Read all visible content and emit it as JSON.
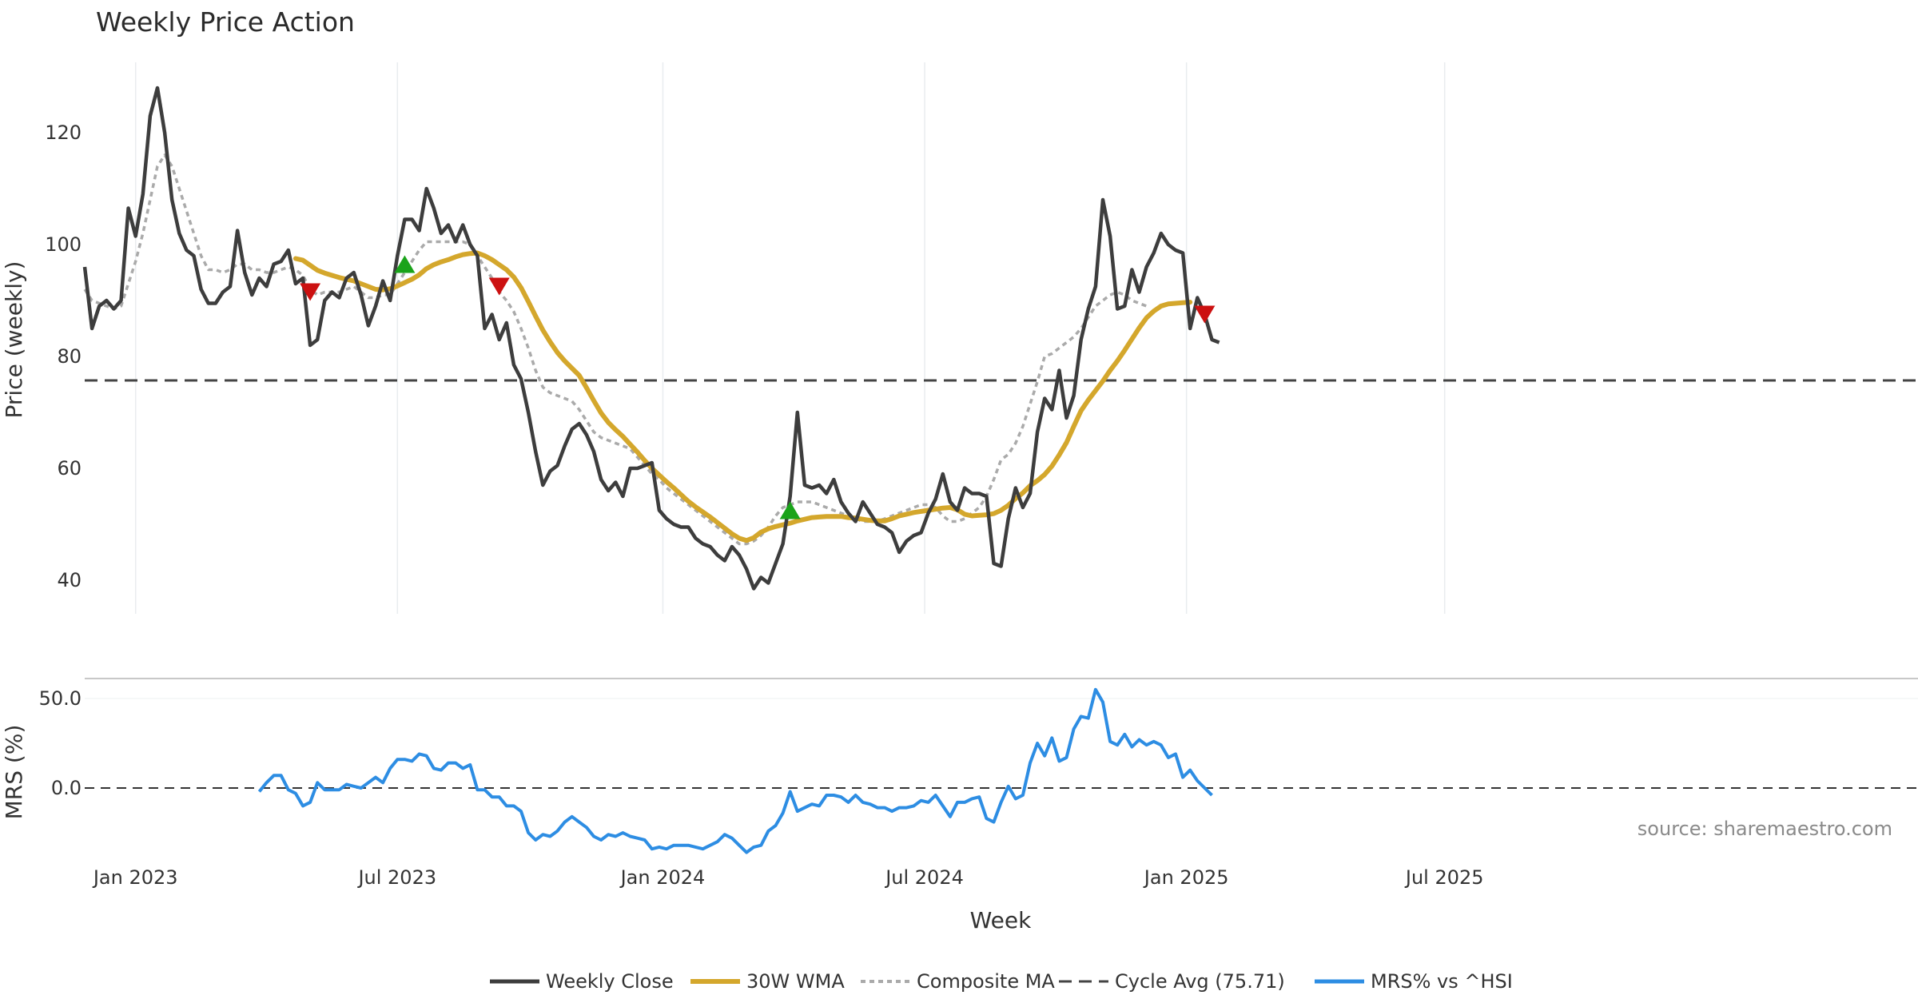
{
  "chart_data": {
    "type": "line",
    "title": "Weekly Price Action",
    "xlabel": "Week",
    "x_ticks": [
      "Jan 2023",
      "Jul 2023",
      "Jan 2024",
      "Jul 2024",
      "Jan 2025",
      "Jul 2025"
    ],
    "legend_position": "bottom-center",
    "source": "source: sharemaestro.com",
    "colors": {
      "close": "#3d3d3d",
      "wma": "#d4a72c",
      "composite": "#aaaaaa",
      "cycle": "#444444",
      "mrs": "#2d8de3",
      "buy": "#1aa31a",
      "sell": "#cc1111"
    },
    "legend": [
      "Weekly Close",
      "30W WMA",
      "Composite MA",
      "Cycle Avg (75.71)",
      "MRS% vs ^HSI"
    ],
    "panels": [
      {
        "name": "price",
        "ylabel": "Price (weekly)",
        "ylim": [
          34,
          133
        ],
        "yticks": [
          "40",
          "60",
          "80",
          "100",
          "120"
        ],
        "ytick_values": [
          40,
          60,
          80,
          100,
          120
        ],
        "cycle_avg": 75.71,
        "series": [
          {
            "name": "Weekly Close",
            "x0": 0,
            "values": [
              96,
              85,
              89,
              90,
              88.5,
              90,
              106.5,
              101.5,
              109,
              123,
              128,
              120,
              108,
              102,
              99,
              98,
              92,
              89.5,
              89.5,
              91.5,
              92.5,
              102.5,
              95,
              91,
              94,
              92.5,
              96.5,
              97,
              99,
              93,
              94,
              82,
              83,
              90,
              91.5,
              90.5,
              94,
              95,
              91,
              85.5,
              89,
              93.5,
              90,
              98,
              104.5,
              104.5,
              102.5,
              110,
              106.5,
              102,
              103.5,
              100.5,
              103.5,
              100,
              98,
              85,
              87.5,
              83,
              86,
              78.5,
              76,
              70,
              63,
              57,
              59.5,
              60.5,
              64,
              67,
              68,
              66,
              63,
              58,
              56,
              57.5,
              55,
              60,
              60,
              60.5,
              61,
              52.5,
              51,
              50,
              49.5,
              49.5,
              47.5,
              46.5,
              46,
              44.5,
              43.5,
              46,
              44.5,
              42,
              38.5,
              40.5,
              39.5,
              43,
              46.5,
              55,
              70,
              57,
              56.5,
              57,
              55.5,
              58,
              54,
              52,
              50.5,
              54,
              52,
              50,
              49.5,
              48.5,
              45,
              47,
              48,
              48.5,
              52,
              54.5,
              59,
              54,
              52.5,
              56.5,
              55.5,
              55.5,
              55,
              43,
              42.5,
              51,
              56.5,
              53,
              55.5,
              66.5,
              72.5,
              70.5,
              77.5,
              69,
              73,
              83,
              88.5,
              92.5,
              108,
              101.5,
              88.5,
              89,
              95.5,
              91.5,
              96,
              98.5,
              102,
              100,
              99,
              98.5,
              85,
              90.5,
              87.5,
              83,
              82.5
            ]
          },
          {
            "name": "30W WMA",
            "x0": 29,
            "values": [
              97.5,
              97.2,
              96.3,
              95.4,
              94.9,
              94.5,
              94.1,
              93.8,
              93.5,
              93,
              92.5,
              92,
              91.9,
              92.1,
              92.6,
              93.2,
              93.8,
              94.6,
              95.7,
              96.4,
              96.9,
              97.3,
              97.8,
              98.2,
              98.4,
              98.5,
              98,
              97.3,
              96.4,
              95.5,
              94.2,
              92.3,
              89.8,
              87.2,
              84.7,
              82.6,
              80.7,
              79.2,
              77.9,
              76.6,
              74.4,
              72.1,
              69.9,
              68.2,
              66.9,
              65.7,
              64.3,
              62.9,
              61.4,
              60,
              58.8,
              57.6,
              56.5,
              55.3,
              54.1,
              53.1,
              52.2,
              51.3,
              50.3,
              49.3,
              48.3,
              47.5,
              47.1,
              47.6,
              48.6,
              49.2,
              49.6,
              49.9,
              50.2,
              50.6,
              50.9,
              51.2,
              51.3,
              51.4,
              51.4,
              51.4,
              51.2,
              51.1,
              50.9,
              50.7,
              50.6,
              50.6,
              51,
              51.5,
              51.8,
              52.1,
              52.3,
              52.5,
              52.7,
              52.9,
              53,
              52.6,
              51.8,
              51.5,
              51.6,
              51.7,
              51.9,
              52.5,
              53.4,
              54.6,
              55.6,
              56.9,
              57.8,
              58.9,
              60.4,
              62.4,
              64.6,
              67.5,
              70.3,
              72.2,
              73.9,
              75.6,
              77.5,
              79.2,
              81.1,
              83.1,
              85.1,
              86.9,
              88.1,
              89,
              89.4,
              89.5,
              89.6,
              89.7
            ]
          },
          {
            "name": "Composite MA",
            "x0": 0,
            "values": [
              92,
              90,
              89.5,
              89,
              88.5,
              89,
              93,
              97,
              102,
              108,
              114,
              116,
              114,
              110,
              106,
              102,
              98,
              95.5,
              95.5,
              95,
              95.5,
              96.5,
              96.5,
              95.5,
              95.5,
              95,
              95,
              95.5,
              96,
              95.5,
              94.5,
              92,
              91,
              91.5,
              91.5,
              91.5,
              92,
              92.5,
              91.5,
              90.5,
              90.5,
              91,
              91,
              93,
              95,
              97,
              99,
              100.5,
              100.5,
              100.5,
              100.5,
              100.5,
              100.5,
              100,
              98,
              96,
              94,
              91.5,
              90,
              88,
              85,
              81.5,
              77.5,
              74.5,
              73.5,
              73,
              72.5,
              72,
              70.5,
              68.5,
              66.5,
              65.5,
              65,
              64.5,
              64,
              63.5,
              62,
              60.5,
              59,
              58,
              56.5,
              55.5,
              54.5,
              53.5,
              52.5,
              51.5,
              50.5,
              49.5,
              48.5,
              47.5,
              46.5,
              46.5,
              47,
              48,
              49.5,
              51.5,
              53,
              53.5,
              54,
              54,
              54,
              53.5,
              53,
              52.5,
              52,
              51.5,
              51,
              50.5,
              50.5,
              50.5,
              51,
              51.5,
              52,
              52.5,
              53,
              53.5,
              53.5,
              53,
              51.5,
              50.5,
              50.5,
              51,
              52,
              53,
              55,
              58,
              61.5,
              62.5,
              64.5,
              67.5,
              71.5,
              75.5,
              80,
              80.5,
              81.5,
              82.5,
              83.5,
              85,
              87,
              89,
              90,
              91,
              91.5,
              91,
              90,
              89.5,
              89
            ]
          }
        ],
        "buy_markers": [
          {
            "x": 44,
            "y": 96.5
          },
          {
            "x": 97,
            "y": 52.5
          }
        ],
        "sell_markers": [
          {
            "x": 31,
            "y": 91.5
          },
          {
            "x": 57,
            "y": 92.5
          },
          {
            "x": 154,
            "y": 87.5
          }
        ]
      },
      {
        "name": "mrs",
        "ylabel": "MRS (%)",
        "ylim": [
          -39,
          60
        ],
        "yticks": [
          "50.0",
          "0.0"
        ],
        "ytick_values": [
          50,
          0
        ],
        "series": [
          {
            "name": "MRS% vs ^HSI",
            "x0": 24,
            "values": [
              -2,
              3,
              7,
              7,
              -1,
              -3,
              -10,
              -8,
              3,
              -1,
              -1,
              -1,
              2,
              1,
              0,
              3,
              6,
              3,
              11,
              16,
              16,
              15,
              19,
              18,
              11,
              10,
              14,
              14,
              11,
              13,
              -1,
              -1,
              -5,
              -5,
              -10,
              -10,
              -13,
              -25,
              -29,
              -26,
              -27,
              -24,
              -19,
              -16,
              -19,
              -22,
              -27,
              -29,
              -26,
              -27,
              -25,
              -27,
              -28,
              -29,
              -34,
              -33,
              -34,
              -32,
              -32,
              -32,
              -33,
              -34,
              -32,
              -30,
              -26,
              -28,
              -32,
              -36,
              -33,
              -32,
              -24,
              -21,
              -14,
              -2,
              -13,
              -11,
              -9,
              -10,
              -4,
              -4,
              -5,
              -8,
              -4,
              -8,
              -9,
              -11,
              -11,
              -13,
              -11,
              -11,
              -10,
              -7,
              -8,
              -4,
              -10,
              -16,
              -8,
              -8,
              -6,
              -5,
              -17,
              -19,
              -8,
              1,
              -6,
              -4,
              14,
              25,
              18,
              28,
              15,
              17,
              33,
              40,
              39,
              55,
              48,
              26,
              24,
              30,
              23,
              27,
              24,
              26,
              24,
              17,
              19,
              6,
              10,
              4,
              0,
              -4
            ]
          }
        ]
      }
    ]
  }
}
